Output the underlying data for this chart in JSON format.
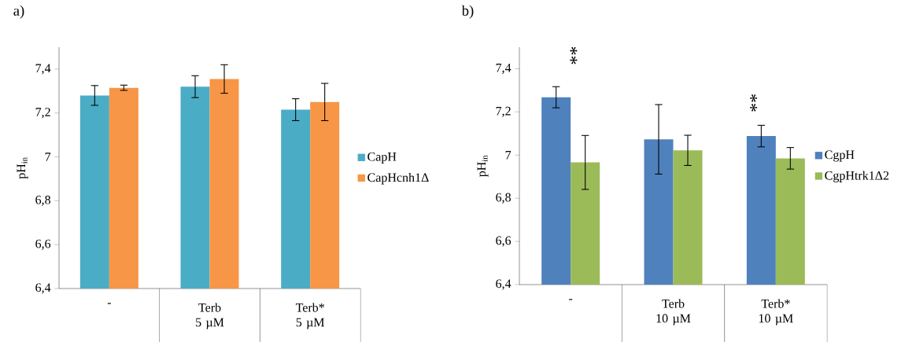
{
  "chart_data": [
    {
      "type": "bar",
      "title": "a)",
      "ylabel": "pH$_{in}$",
      "categories": [
        "-",
        "Terb 5 µM",
        "Terb* 5 µM"
      ],
      "series": [
        {
          "name": "CapH",
          "color": "#4bacc6",
          "values": [
            7.28,
            7.32,
            7.215
          ],
          "errors": [
            0.045,
            0.05,
            0.05
          ]
        },
        {
          "name": "CapHcnh1Δ",
          "color": "#f79646",
          "values": [
            7.315,
            7.355,
            7.25
          ],
          "errors": [
            0.012,
            0.065,
            0.085
          ]
        }
      ],
      "ylim": [
        6.4,
        7.5
      ],
      "yticks": [
        {
          "value": 6.4,
          "label": "6,4"
        },
        {
          "value": 6.6,
          "label": "6,6"
        },
        {
          "value": 6.8,
          "label": "6,8"
        },
        7,
        {
          "value": 7.2,
          "label": "7,2"
        },
        {
          "value": 7.4,
          "label": "7,4"
        }
      ],
      "legend": "right"
    },
    {
      "type": "bar",
      "title": "b)",
      "ylabel": "pH$_{in}$",
      "categories": [
        "-",
        "Terb 10 µM",
        "Terb* 10 µM"
      ],
      "series": [
        {
          "name": "CgpH",
          "color": "#4f81bd",
          "values": [
            7.268,
            7.073,
            7.088
          ],
          "errors": [
            0.049,
            0.161,
            0.05
          ]
        },
        {
          "name": "CgpHtrk1Δ2",
          "color": "#9bbb59",
          "values": [
            6.966,
            7.022,
            6.985
          ],
          "errors": [
            0.125,
            0.07,
            0.05
          ]
        }
      ],
      "ylim": [
        6.4,
        7.5
      ],
      "yticks": [
        {
          "value": 6.4,
          "label": "6,4"
        },
        {
          "value": 6.6,
          "label": "6,6"
        },
        {
          "value": 6.8,
          "label": "6,8"
        },
        7,
        {
          "value": 7.2,
          "label": "7,2"
        },
        {
          "value": 7.4,
          "label": "7,4"
        }
      ],
      "legend": "right",
      "annotations": [
        "**",
        "**"
      ]
    }
  ]
}
